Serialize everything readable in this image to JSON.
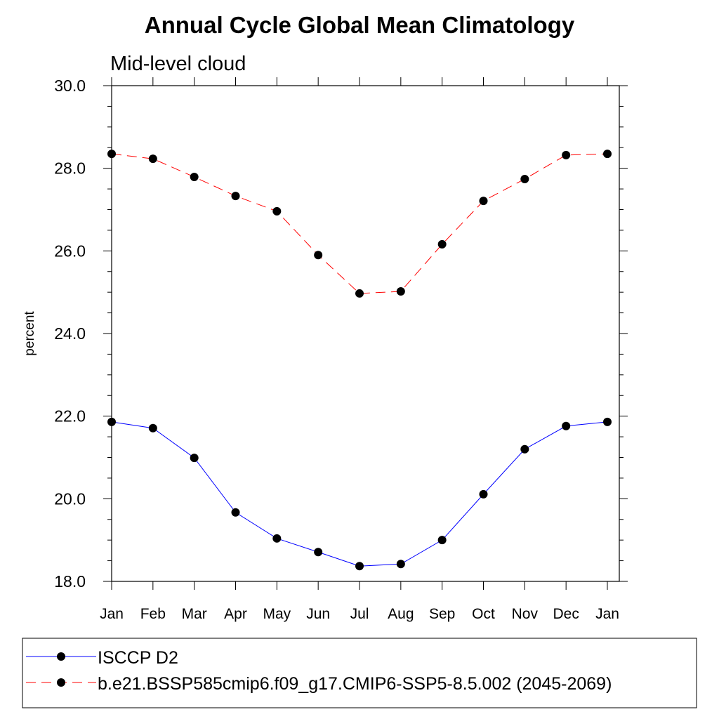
{
  "chart_data": {
    "type": "line",
    "title": "Annual Cycle Global Mean Climatology",
    "subtitle": "Mid-level cloud",
    "xlabel": "",
    "ylabel": "percent",
    "categories": [
      "Jan",
      "Feb",
      "Mar",
      "Apr",
      "May",
      "Jun",
      "Jul",
      "Aug",
      "Sep",
      "Oct",
      "Nov",
      "Dec",
      "Jan"
    ],
    "ylim": [
      18.0,
      30.0
    ],
    "yticks": [
      "18.0",
      "20.0",
      "22.0",
      "24.0",
      "26.0",
      "28.0",
      "30.0"
    ],
    "grid": false,
    "legend_placement": "bottom",
    "series": [
      {
        "name": "ISCCP D2",
        "color": "#0000ff",
        "dash": "solid",
        "values": [
          21.86,
          21.71,
          20.99,
          19.67,
          19.04,
          18.71,
          18.37,
          18.42,
          19.0,
          20.11,
          21.2,
          21.76,
          21.86
        ]
      },
      {
        "name": "b.e21.BSSP585cmip6.f09_g17.CMIP6-SSP5-8.5.002 (2045-2069)",
        "color": "#ff0000",
        "dash": "dashed",
        "values": [
          28.35,
          28.23,
          27.79,
          27.33,
          26.96,
          25.9,
          24.97,
          25.02,
          26.16,
          27.21,
          27.74,
          28.32,
          28.35
        ]
      }
    ]
  }
}
